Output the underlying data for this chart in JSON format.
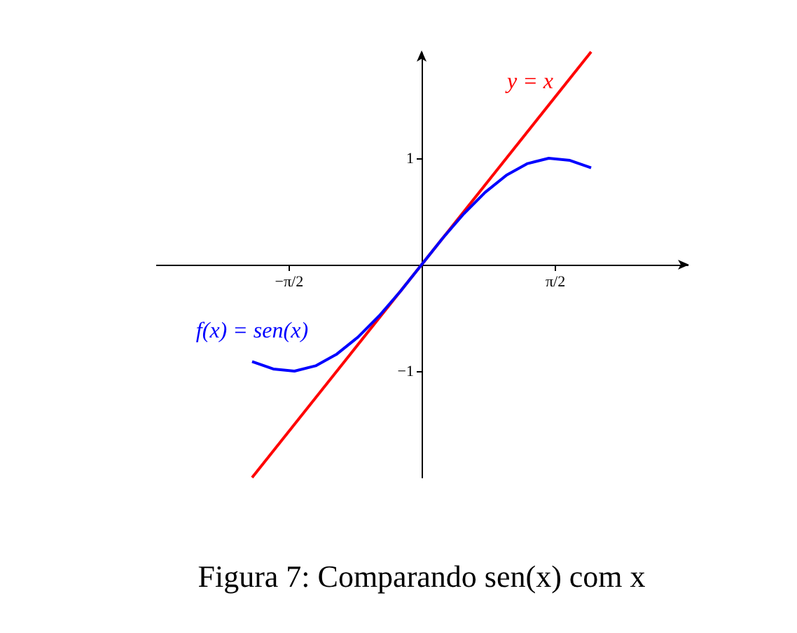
{
  "chart_data": {
    "type": "line",
    "xlim": [
      -3.14,
      3.14
    ],
    "ylim": [
      -2,
      2
    ],
    "xticks": [
      {
        "value": -1.5708,
        "label": "−π/2"
      },
      {
        "value": 1.5708,
        "label": "π/2"
      }
    ],
    "yticks": [
      {
        "value": -1,
        "label": "−1"
      },
      1
    ],
    "grid": false,
    "legend": false,
    "marker": "none",
    "line_style": "solid",
    "series": [
      {
        "name": "y = x",
        "color": "#ff0000",
        "x": [
          -2,
          2
        ],
        "values": [
          -2,
          2
        ]
      },
      {
        "name": "f(x) = sen(x)",
        "color": "#0000ff",
        "x": [
          -2,
          -1.75,
          -1.5,
          -1.25,
          -1,
          -0.75,
          -0.5,
          -0.25,
          0,
          0.25,
          0.5,
          0.75,
          1,
          1.25,
          1.5,
          1.75,
          2
        ],
        "values": [
          -0.91,
          -0.98,
          -1.0,
          -0.95,
          -0.84,
          -0.68,
          -0.48,
          -0.25,
          0,
          0.25,
          0.48,
          0.68,
          0.84,
          0.95,
          1.0,
          0.98,
          0.91
        ]
      }
    ],
    "annotations": [
      "Figura 7: Comparando sen(x) com x"
    ]
  }
}
